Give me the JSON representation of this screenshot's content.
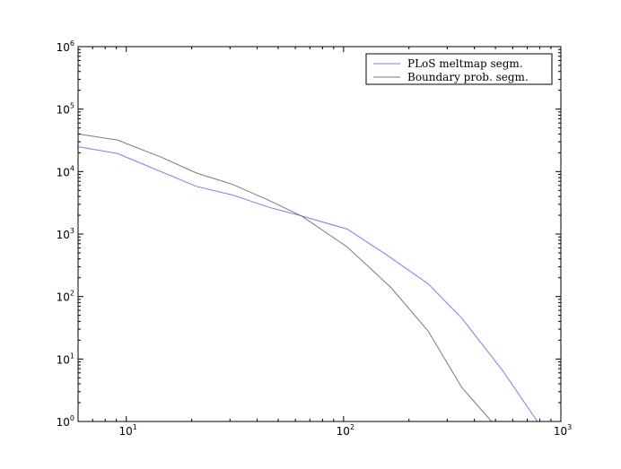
{
  "chart_data": {
    "type": "line",
    "title": "",
    "xlabel": "",
    "ylabel": "",
    "xscale": "log",
    "yscale": "log",
    "xlim": [
      6,
      1000
    ],
    "ylim": [
      1,
      1000000
    ],
    "grid": false,
    "legend_position": "top-right",
    "x_ticks": [
      {
        "base": "10",
        "exp": "1",
        "value": 10
      },
      {
        "base": "10",
        "exp": "2",
        "value": 100
      },
      {
        "base": "10",
        "exp": "3",
        "value": 1000
      }
    ],
    "y_ticks": [
      {
        "base": "10",
        "exp": "0",
        "value": 1
      },
      {
        "base": "10",
        "exp": "1",
        "value": 10
      },
      {
        "base": "10",
        "exp": "2",
        "value": 100
      },
      {
        "base": "10",
        "exp": "3",
        "value": 1000
      },
      {
        "base": "10",
        "exp": "4",
        "value": 10000
      },
      {
        "base": "10",
        "exp": "5",
        "value": 100000
      },
      {
        "base": "10",
        "exp": "6",
        "value": 1000000
      }
    ],
    "series": [
      {
        "name": "PLoS meltmap segm.",
        "color": "#6f7ff0",
        "x": [
          6,
          9.1,
          21,
          31,
          45,
          64,
          104,
          160,
          245,
          350,
          540,
          780
        ],
        "y": [
          25000,
          19500,
          5800,
          4200,
          2700,
          1950,
          1200,
          450,
          160,
          45,
          6.5,
          1
        ]
      },
      {
        "name": "Boundary prob. segm.",
        "color": "#7a7a7a",
        "x": [
          6,
          9.1,
          14.5,
          21,
          31,
          45,
          64,
          104,
          165,
          245,
          350,
          480
        ],
        "y": [
          40000,
          32000,
          17000,
          9500,
          6200,
          3500,
          1950,
          620,
          140,
          28,
          3.5,
          1
        ]
      }
    ]
  }
}
